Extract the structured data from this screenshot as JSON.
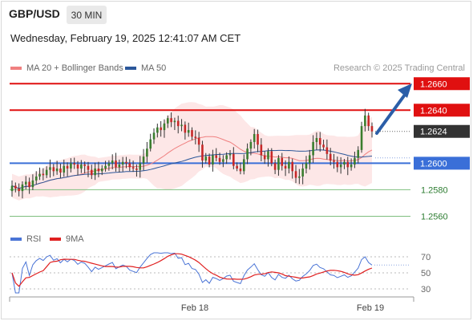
{
  "header": {
    "symbol": "GBP/USD",
    "timeframe": "30 MIN",
    "datetime": "Wednesday, February 19, 2025 12:41:07 AM CET"
  },
  "legend": {
    "items": [
      {
        "label": "MA 20 + Bollinger Bands",
        "color": "#f08080"
      },
      {
        "label": "MA 50",
        "color": "#2b579a"
      }
    ],
    "credit": "Research © 2025 Trading Central"
  },
  "rsi_legend": {
    "items": [
      {
        "label": "RSI",
        "color": "#4a74d6"
      },
      {
        "label": "9MA",
        "color": "#e02020"
      }
    ]
  },
  "colors": {
    "bull": "#3a7d2e",
    "bear": "#c62828",
    "resistance": "#e01010",
    "support_current": "#3a6fd8",
    "support": "#7fbf7f",
    "price_tag": "#333333",
    "arrow": "#2b5ea8",
    "band": "#fde3e3"
  },
  "chart_data": [
    {
      "type": "candlestick",
      "title": "GBP/USD",
      "timeframe": "30 MIN",
      "ylim": [
        1.255,
        1.2665
      ],
      "xlabels": [
        "Feb 18",
        "Feb 19"
      ],
      "last_price": 1.2624,
      "levels": [
        {
          "value": 1.266,
          "label": "1.2660",
          "role": "resistance-target"
        },
        {
          "value": 1.264,
          "label": "1.2640",
          "role": "resistance"
        },
        {
          "value": 1.2624,
          "label": "1.2624",
          "role": "last-price"
        },
        {
          "value": 1.26,
          "label": "1.2600",
          "role": "pivot"
        },
        {
          "value": 1.258,
          "label": "1.2580",
          "role": "support"
        },
        {
          "value": 1.256,
          "label": "1.2560",
          "role": "support"
        }
      ],
      "closes": [
        1.2583,
        1.2581,
        1.2579,
        1.2584,
        1.2586,
        1.2582,
        1.2587,
        1.259,
        1.2592,
        1.2591,
        1.2595,
        1.2597,
        1.2594,
        1.2596,
        1.2593,
        1.2598,
        1.2596,
        1.26,
        1.2599,
        1.2596,
        1.2599,
        1.2598,
        1.2595,
        1.2591,
        1.2596,
        1.2594,
        1.2596,
        1.2598,
        1.26,
        1.2602,
        1.2597,
        1.2599,
        1.2601,
        1.26,
        1.2597,
        1.2596,
        1.2595,
        1.26,
        1.2605,
        1.2611,
        1.2618,
        1.2623,
        1.2627,
        1.2625,
        1.263,
        1.2634,
        1.2631,
        1.2632,
        1.2628,
        1.2629,
        1.2623,
        1.2625,
        1.262,
        1.2619,
        1.2614,
        1.2602,
        1.2605,
        1.2599,
        1.2606,
        1.2604,
        1.2601,
        1.2603,
        1.2606,
        1.2607,
        1.2598,
        1.2596,
        1.2594,
        1.2603,
        1.2611,
        1.2616,
        1.2622,
        1.2614,
        1.2606,
        1.2603,
        1.2609,
        1.26,
        1.2595,
        1.2604,
        1.2598,
        1.2596,
        1.2601,
        1.2594,
        1.2589,
        1.259,
        1.2596,
        1.26,
        1.2606,
        1.2616,
        1.2619,
        1.2614,
        1.2612,
        1.2607,
        1.2602,
        1.2601,
        1.2597,
        1.2599,
        1.2601,
        1.2597,
        1.2599,
        1.2604,
        1.261,
        1.2628,
        1.2636,
        1.2628,
        1.2624
      ],
      "series": [
        {
          "name": "MA 20 + Bollinger Bands",
          "type": "ma-band"
        },
        {
          "name": "MA 50",
          "type": "ma"
        }
      ]
    },
    {
      "type": "line",
      "ylim": [
        20,
        80
      ],
      "yticks": [
        70,
        50,
        30
      ],
      "series": [
        {
          "name": "RSI"
        },
        {
          "name": "9MA"
        }
      ]
    }
  ]
}
